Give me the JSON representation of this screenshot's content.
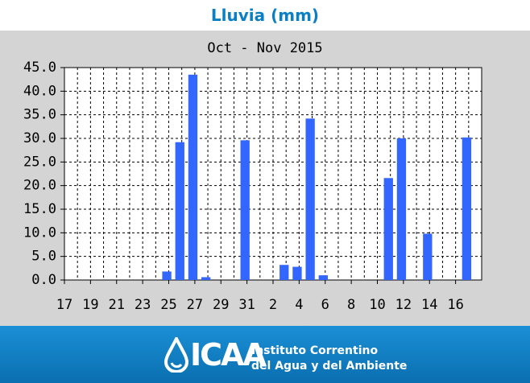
{
  "header": {
    "title": "Lluvia (mm)"
  },
  "chart_data": {
    "type": "bar",
    "subtitle": "Oct - Nov  2015",
    "categories": [
      "17",
      null,
      "19",
      null,
      "21",
      null,
      "23",
      null,
      "25",
      null,
      "27",
      null,
      "29",
      null,
      "31",
      null,
      "2",
      null,
      "4",
      null,
      "6",
      null,
      "8",
      null,
      "10",
      null,
      "12",
      null,
      "14",
      null,
      "16",
      null
    ],
    "values": [
      0,
      0,
      0,
      0,
      0,
      0,
      0,
      1.8,
      29.2,
      43.5,
      0.6,
      0,
      0,
      29.6,
      0,
      0,
      3.2,
      2.8,
      34.2,
      1.0,
      0,
      0,
      0,
      0,
      21.6,
      30.0,
      0,
      9.8,
      0,
      0,
      30.2,
      0
    ],
    "color": "#3366ff",
    "ylim": [
      0,
      45
    ],
    "yticks": [
      {
        "value": 0,
        "label": "0.0"
      },
      {
        "value": 5,
        "label": "5.0"
      },
      {
        "value": 10,
        "label": "10.0"
      },
      {
        "value": 15,
        "label": "15.0"
      },
      {
        "value": 20,
        "label": "20.0"
      },
      {
        "value": 25,
        "label": "25.0"
      },
      {
        "value": 30,
        "label": "30.0"
      },
      {
        "value": 35,
        "label": "35.0"
      },
      {
        "value": 40,
        "label": "40.0"
      },
      {
        "value": 45,
        "label": "45.0"
      }
    ],
    "grid": true
  },
  "footer": {
    "logo": "ICAA",
    "line1": "Instituto Correntino",
    "line2": "del Agua y del Ambiente"
  }
}
